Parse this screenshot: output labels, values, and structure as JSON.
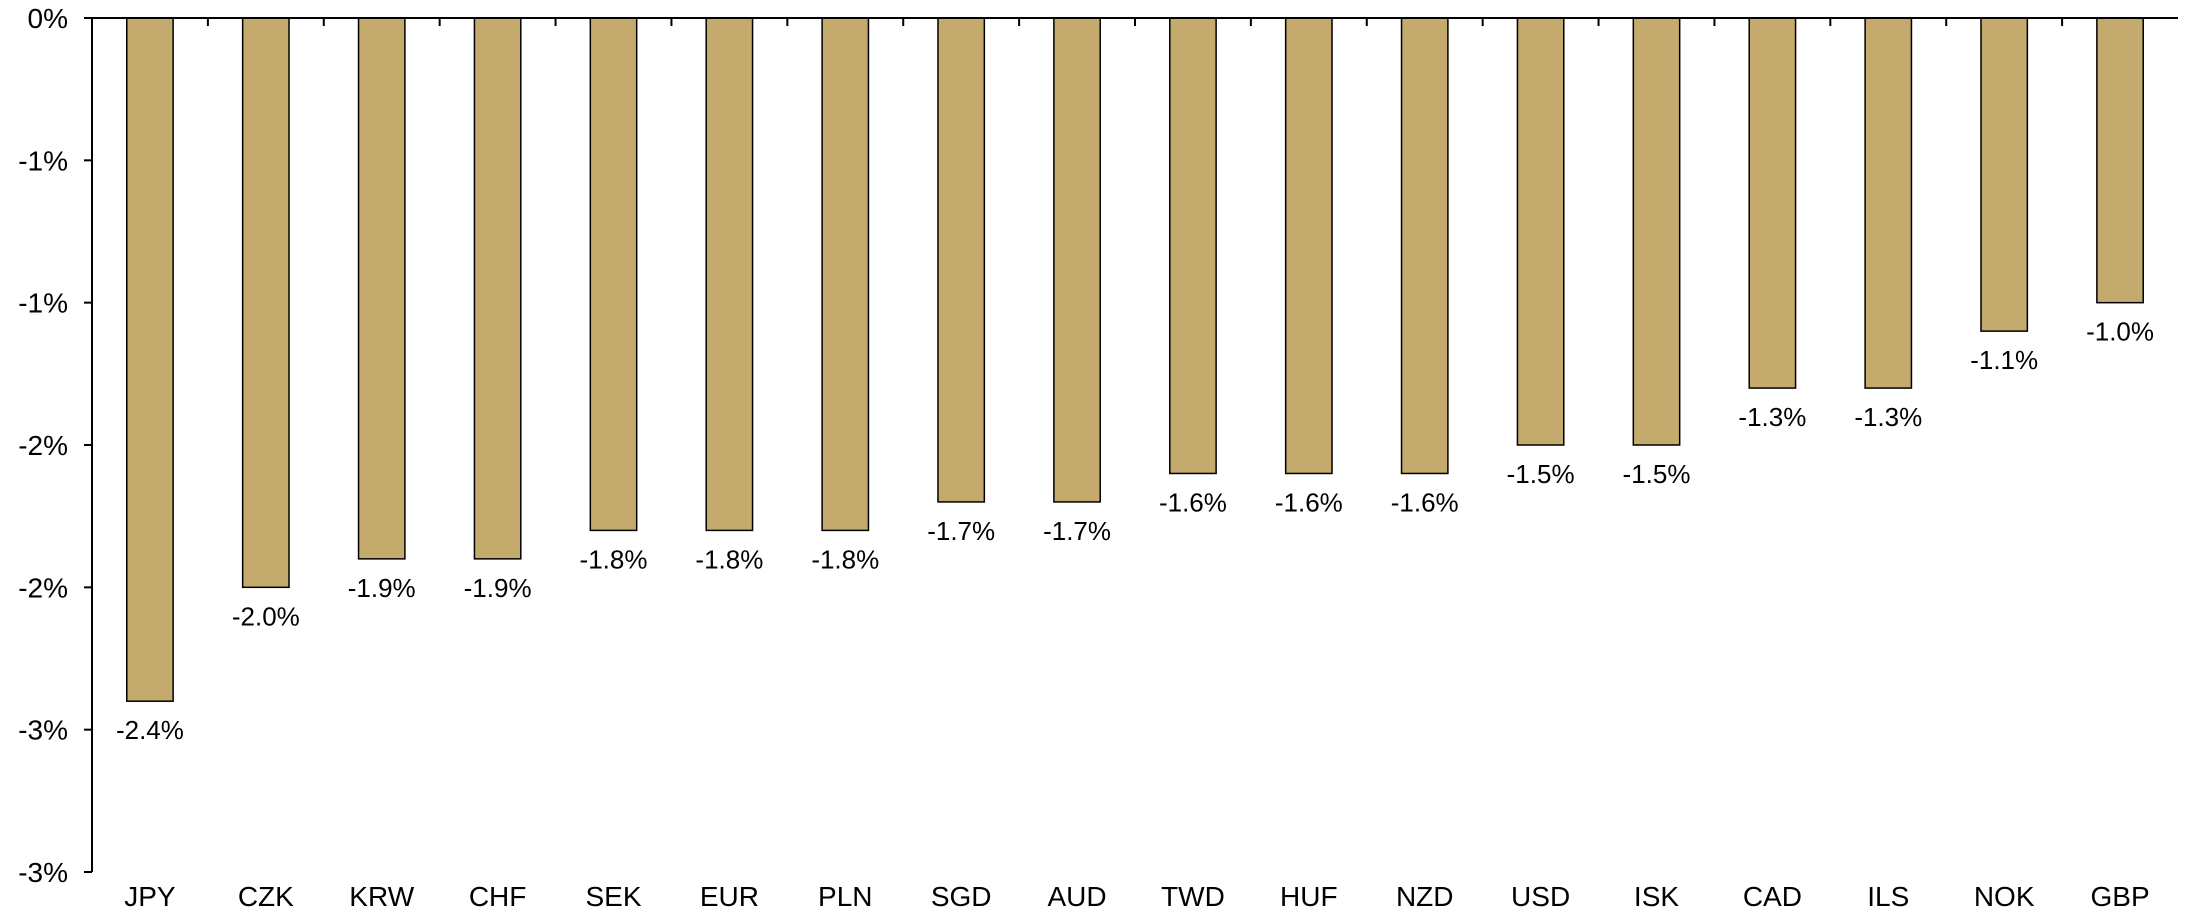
{
  "chart_data": {
    "type": "bar",
    "categories": [
      "JPY",
      "CZK",
      "KRW",
      "CHF",
      "SEK",
      "EUR",
      "PLN",
      "SGD",
      "AUD",
      "TWD",
      "HUF",
      "NZD",
      "USD",
      "ISK",
      "CAD",
      "ILS",
      "NOK",
      "GBP"
    ],
    "values": [
      -2.4,
      -2.0,
      -1.9,
      -1.9,
      -1.8,
      -1.8,
      -1.8,
      -1.7,
      -1.7,
      -1.6,
      -1.6,
      -1.6,
      -1.5,
      -1.5,
      -1.3,
      -1.3,
      -1.1,
      -1.0
    ],
    "data_labels": [
      "-2.4%",
      "-2.0%",
      "-1.9%",
      "-1.9%",
      "-1.8%",
      "-1.8%",
      "-1.8%",
      "-1.7%",
      "-1.7%",
      "-1.6%",
      "-1.6%",
      "-1.6%",
      "-1.5%",
      "-1.5%",
      "-1.3%",
      "-1.3%",
      "-1.1%",
      "-1.0%"
    ],
    "y_ticks": [
      0,
      -0.5,
      -1.0,
      -1.5,
      -2.0,
      -2.5,
      -3.0
    ],
    "y_tick_labels": [
      "0%",
      "-1%",
      "-1%",
      "-2%",
      "-2%",
      "-3%",
      "-3%"
    ],
    "ylim": [
      -3.0,
      0
    ],
    "title": "",
    "xlabel": "",
    "ylabel": "",
    "grid": false,
    "legend": "none",
    "bar_color": "#c4aa6c",
    "bar_edge_color": "#000000"
  }
}
